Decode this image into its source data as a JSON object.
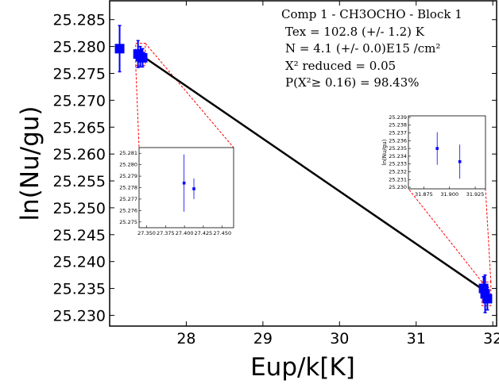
{
  "chart_data": {
    "type": "scatter",
    "xlabel": "Eup/k[K]",
    "ylabel": "ln(Nu/gu)",
    "xlim": [
      27.0,
      32.05
    ],
    "ylim": [
      25.228,
      25.2885
    ],
    "xticks": [
      28,
      29,
      30,
      31,
      32
    ],
    "x_tick_labels": [
      "28",
      "29",
      "30",
      "31",
      "32"
    ],
    "yticks": [
      25.23,
      25.235,
      25.24,
      25.245,
      25.25,
      25.255,
      25.26,
      25.265,
      25.27,
      25.275,
      25.28,
      25.285
    ],
    "y_tick_labels": [
      "25.230",
      "25.235",
      "25.240",
      "25.245",
      "25.250",
      "25.255",
      "25.260",
      "25.265",
      "25.270",
      "25.275",
      "25.280",
      "25.285"
    ],
    "annotation_lines": [
      "Comp 1 - CH3OCHO - Block 1",
      "Tex =  102.8 (+/- 1.2) K",
      "N = 4.1 (+/- 0.0)E15 /cm²",
      "X² reduced = 0.05",
      "P(X²≥ 0.16) = 98.43%"
    ],
    "fit_line": {
      "x": [
        27.4,
        31.9
      ],
      "y": [
        25.2785,
        25.2345
      ]
    },
    "series": [
      {
        "color": "#0000ff",
        "points": [
          {
            "x": 27.13,
            "y": 25.2796,
            "yerr": 0.0043
          },
          {
            "x": 27.37,
            "y": 25.2786,
            "yerr": 0.0025
          },
          {
            "x": 27.4,
            "y": 25.2781,
            "yerr": 0.0019
          },
          {
            "x": 27.43,
            "y": 25.2779,
            "yerr": 0.0017
          },
          {
            "x": 31.88,
            "y": 25.235,
            "yerr": 0.0022
          },
          {
            "x": 31.9,
            "y": 25.234,
            "yerr": 0.0035
          },
          {
            "x": 31.93,
            "y": 25.2331,
            "yerr": 0.0021
          }
        ]
      }
    ],
    "insets": [
      {
        "xlim": [
          27.34,
          27.465
        ],
        "ylim": [
          25.2745,
          25.2815
        ],
        "xticks": [
          27.35,
          27.375,
          27.4,
          27.425,
          27.45
        ],
        "x_tick_labels": [
          "27.350",
          "27.375",
          "27.400",
          "27.425",
          "27.450"
        ],
        "yticks": [
          25.275,
          25.276,
          25.277,
          25.278,
          25.279,
          25.28,
          25.281
        ],
        "y_tick_labels": [
          "25.275",
          "25.276",
          "25.277",
          "25.278",
          "25.279",
          "25.280",
          "25.281"
        ],
        "points": [
          {
            "x": 27.3995,
            "y": 25.2784,
            "yerr": 0.0025
          },
          {
            "x": 27.4125,
            "y": 25.2779,
            "yerr": 0.0009
          }
        ]
      },
      {
        "xlim": [
          31.86,
          31.935
        ],
        "ylim": [
          25.2298,
          25.2392
        ],
        "xticks": [
          31.875,
          31.9,
          31.925
        ],
        "x_tick_labels": [
          "31.875",
          "31.900",
          "31.925"
        ],
        "yticks": [
          25.23,
          25.231,
          25.232,
          25.233,
          25.234,
          25.235,
          25.236,
          25.237,
          25.238,
          25.239
        ],
        "y_tick_labels": [
          "25.230",
          "25.231",
          "25.232",
          "25.233",
          "25.234",
          "25.235",
          "25.236",
          "25.237",
          "25.238",
          "25.239"
        ],
        "ylabel": "ln(Nu/gu)",
        "points": [
          {
            "x": 31.888,
            "y": 25.235,
            "yerr": 0.0021
          },
          {
            "x": 31.91,
            "y": 25.2333,
            "yerr": 0.0022
          }
        ]
      }
    ]
  }
}
